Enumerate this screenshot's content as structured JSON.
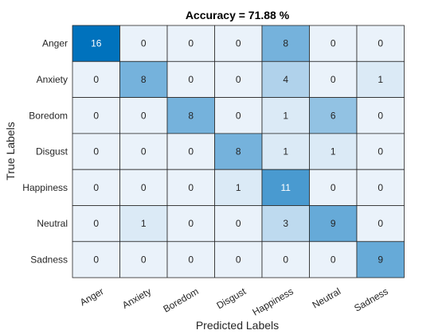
{
  "chart_data": {
    "type": "heatmap",
    "title": "Accuracy = 71.88 %",
    "xlabel": "Predicted Labels",
    "ylabel": "True Labels",
    "x_categories": [
      "Anger",
      "Anxiety",
      "Boredom",
      "Disgust",
      "Happiness",
      "Neutral",
      "Sadness"
    ],
    "y_categories": [
      "Anger",
      "Anxiety",
      "Boredom",
      "Disgust",
      "Happiness",
      "Neutral",
      "Sadness"
    ],
    "values": [
      [
        16,
        0,
        0,
        0,
        8,
        0,
        0
      ],
      [
        0,
        8,
        0,
        0,
        4,
        0,
        1
      ],
      [
        0,
        0,
        8,
        0,
        1,
        6,
        0
      ],
      [
        0,
        0,
        0,
        8,
        1,
        1,
        0
      ],
      [
        0,
        0,
        0,
        1,
        11,
        0,
        0
      ],
      [
        0,
        1,
        0,
        0,
        3,
        9,
        0
      ],
      [
        0,
        0,
        0,
        0,
        0,
        0,
        9
      ]
    ],
    "colormap": {
      "low": "#eaf2fa",
      "high": "#0072bd"
    },
    "grid": true
  }
}
